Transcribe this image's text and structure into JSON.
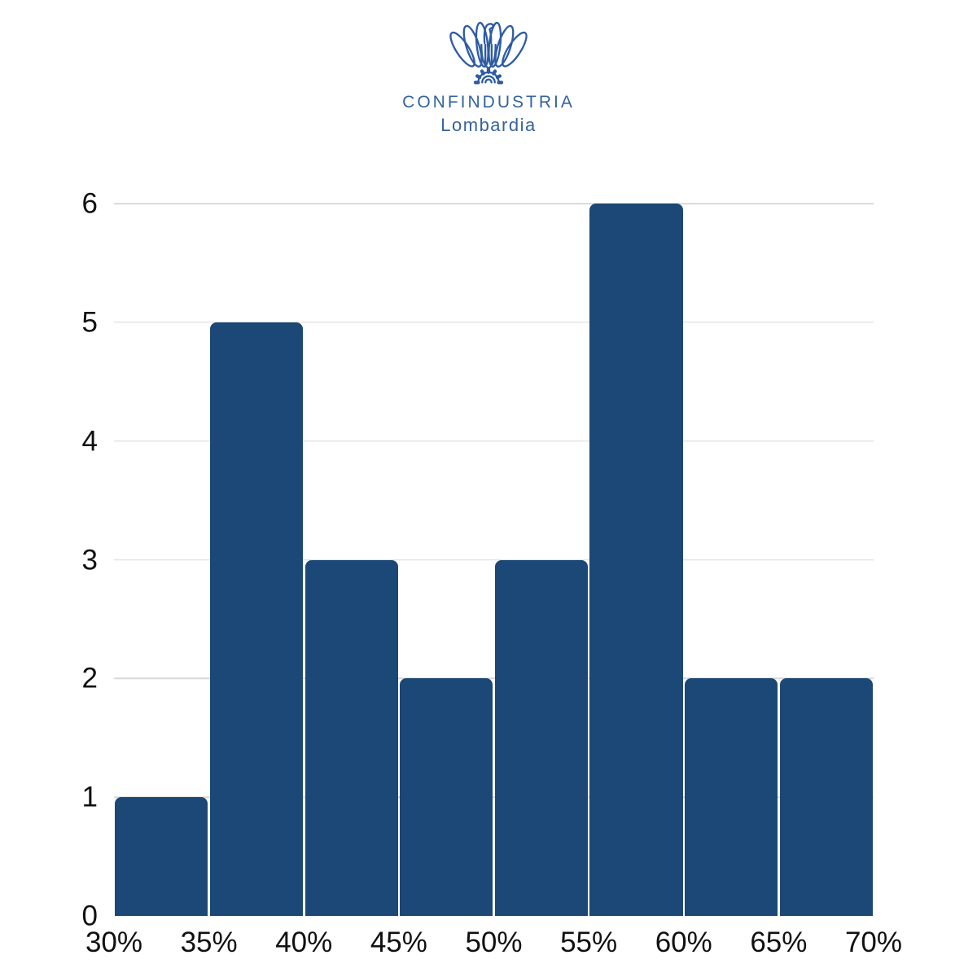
{
  "logo": {
    "org": "CONFINDUSTRIA",
    "region": "Lombardia",
    "icon": "confindustria-eagle-icon",
    "color": "#34639F"
  },
  "chart_data": {
    "type": "bar",
    "subtype": "histogram",
    "title": "",
    "xlabel": "",
    "ylabel": "",
    "categories": [
      "30-35%",
      "35-40%",
      "40-45%",
      "45-50%",
      "50-55%",
      "55-60%",
      "60-65%",
      "65-70%"
    ],
    "values": [
      1,
      5,
      3,
      2,
      3,
      6,
      2,
      2
    ],
    "x_tick_labels": [
      "30%",
      "35%",
      "40%",
      "45%",
      "50%",
      "55%",
      "60%",
      "65%",
      "70%"
    ],
    "y_ticks": [
      0,
      1,
      2,
      3,
      4,
      5,
      6
    ],
    "ylim": [
      0,
      6
    ],
    "grid": true,
    "legend": false,
    "colors": {
      "bar": "#1B4876",
      "gridline": "#D8D8D8",
      "axis_text": "#111111"
    }
  }
}
